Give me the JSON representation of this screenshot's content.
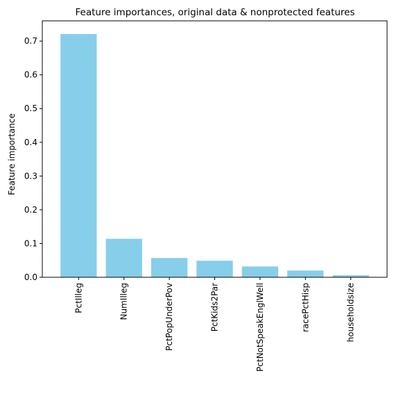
{
  "chart_data": {
    "type": "bar",
    "title": "Feature importances, original data & nonprotected features",
    "xlabel": "",
    "ylabel": "Feature importance",
    "categories": [
      "PctIlleg",
      "NumIlleg",
      "PctPopUnderPov",
      "PctKids2Par",
      "PctNotSpeakEnglWell",
      "racePctHisp",
      "householdsize"
    ],
    "values": [
      0.721,
      0.114,
      0.057,
      0.049,
      0.032,
      0.02,
      0.006
    ],
    "ylim": [
      0,
      0.76
    ],
    "yticks": [
      0.0,
      0.1,
      0.2,
      0.3,
      0.4,
      0.5,
      0.6,
      0.7
    ],
    "ytick_labels": [
      "0.0",
      "0.1",
      "0.2",
      "0.3",
      "0.4",
      "0.5",
      "0.6",
      "0.7"
    ],
    "bar_color": "#87ceeb",
    "grid": false,
    "legend": "none"
  }
}
